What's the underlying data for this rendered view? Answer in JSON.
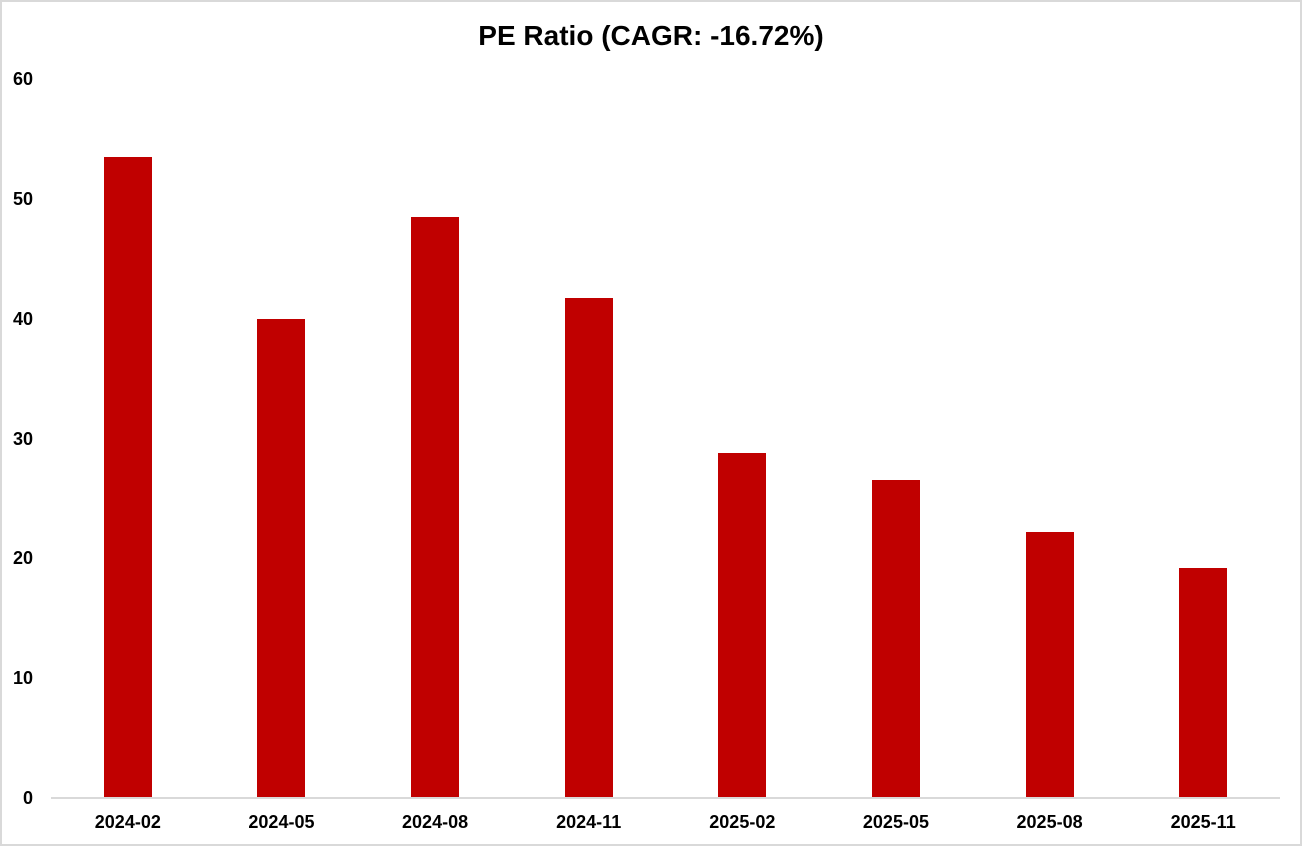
{
  "window": {
    "background_color": "#ffffff",
    "frame_border_color": "#d9d9d9"
  },
  "chart_data": {
    "type": "bar",
    "title": "PE Ratio (CAGR: -16.72%)",
    "categories": [
      "2024-02",
      "2024-05",
      "2024-08",
      "2024-11",
      "2025-02",
      "2025-05",
      "2025-08",
      "2025-11"
    ],
    "values": [
      53.5,
      40.0,
      48.5,
      41.7,
      28.8,
      26.5,
      22.2,
      19.2
    ],
    "series_name": "PE Ratio",
    "cagr_label": "-16.72%",
    "xlabel": "",
    "ylabel": "",
    "ylim": [
      0,
      60
    ],
    "yticks": [
      0,
      10,
      20,
      30,
      40,
      50,
      60
    ],
    "grid": false,
    "legend_position": "none",
    "bar_color": "#c00000",
    "axis_line_color": "#d9d9d9",
    "text_color": "#000000"
  }
}
